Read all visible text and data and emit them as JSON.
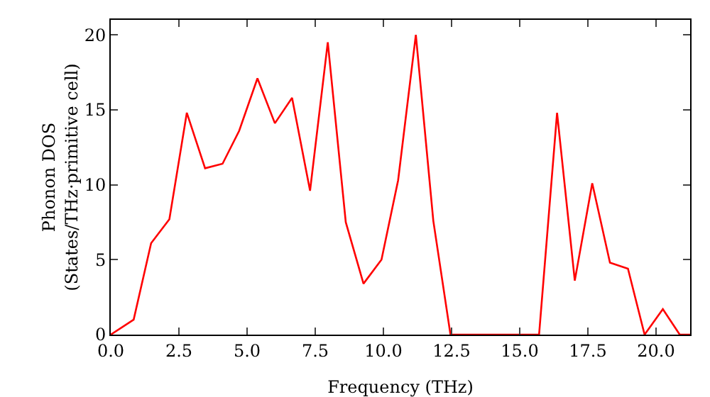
{
  "chart_data": {
    "type": "line",
    "xlabel": "Frequency (THz)",
    "ylabel": "Phonon DOS\n(States/THz·primitive cell)",
    "x": [
      0,
      0.84,
      1.48,
      2.15,
      2.79,
      3.46,
      4.1,
      4.71,
      5.38,
      6.02,
      6.65,
      7.31,
      7.96,
      8.62,
      9.27,
      9.93,
      10.54,
      11.19,
      11.83,
      12.46,
      15.71,
      16.37,
      17.02,
      17.66,
      18.31,
      18.97,
      19.58,
      20.25,
      20.87,
      21.25
    ],
    "series": [
      {
        "color": "#ff0000",
        "values": [
          0,
          1,
          6.1,
          7.7,
          14.8,
          11.1,
          11.4,
          13.6,
          17.1,
          14.1,
          15.8,
          9.6,
          19.5,
          7.5,
          3.4,
          5.0,
          10.3,
          20,
          7.6,
          0,
          0,
          14.8,
          3.6,
          10.1,
          4.8,
          4.4,
          0,
          1.7,
          0,
          0
        ]
      }
    ],
    "xlim": [
      0,
      21.25
    ],
    "ylim": [
      0,
      21
    ],
    "xticks": [
      {
        "value": 0,
        "label": "0.0"
      },
      {
        "value": 2.5,
        "label": "2.5"
      },
      {
        "value": 5,
        "label": "5.0"
      },
      {
        "value": 7.5,
        "label": "7.5"
      },
      {
        "value": 10,
        "label": "10.0"
      },
      {
        "value": 12.5,
        "label": "12.5"
      },
      {
        "value": 15,
        "label": "15.0"
      },
      {
        "value": 17.5,
        "label": "17.5"
      },
      {
        "value": 20,
        "label": "20.0"
      }
    ],
    "yticks": [
      0,
      5,
      10,
      15,
      20
    ],
    "grid": false,
    "marker": "none",
    "line_style": "solid"
  }
}
